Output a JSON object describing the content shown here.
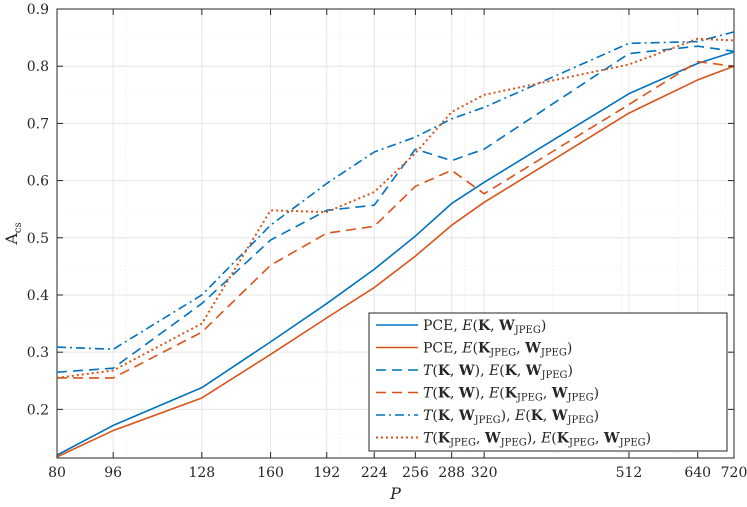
{
  "chart_data": {
    "type": "line",
    "title": "",
    "xlabel": "P",
    "ylabel": "A",
    "ylabel_subscript": "cs",
    "x_scale": "log",
    "xlim": [
      80,
      720
    ],
    "ylim": [
      0.115,
      0.9
    ],
    "x_ticks": [
      80,
      96,
      128,
      160,
      192,
      224,
      256,
      288,
      320,
      512,
      640,
      720
    ],
    "y_ticks": [
      0.2,
      0.3,
      0.4,
      0.5,
      0.6,
      0.7,
      0.8,
      0.9
    ],
    "y_tick_labels": [
      "0.2",
      "0.3",
      "0.4",
      "0.5",
      "0.6",
      "0.7",
      "0.8",
      "0.9"
    ],
    "grid": true,
    "legend_position": "bottom-right",
    "x": [
      80,
      96,
      128,
      160,
      192,
      224,
      256,
      288,
      320,
      512,
      640,
      720
    ],
    "series": [
      {
        "name": "PCE, E(K, W_JPEG)",
        "legend_text": "PCE, E(K, W JPEG)",
        "legend_parts": [
          [
            "PCE, ",
            "normal"
          ],
          [
            "E",
            "italic"
          ],
          [
            "(",
            "normal"
          ],
          [
            "K",
            "bold"
          ],
          [
            ", ",
            "normal"
          ],
          [
            "W",
            "bold"
          ],
          [
            "JPEG",
            "sub"
          ],
          [
            ")",
            "normal"
          ]
        ],
        "color": "#0072BD",
        "style": "solid",
        "values": [
          0.12,
          0.172,
          0.238,
          0.318,
          0.385,
          0.445,
          0.503,
          0.56,
          0.597,
          0.752,
          0.805,
          0.825
        ]
      },
      {
        "name": "PCE, E(K_JPEG, W_JPEG)",
        "legend_text": "PCE, E(K JPEG, W JPEG)",
        "legend_parts": [
          [
            "PCE, ",
            "normal"
          ],
          [
            "E",
            "italic"
          ],
          [
            "(",
            "normal"
          ],
          [
            "K",
            "bold"
          ],
          [
            "JPEG",
            "sub"
          ],
          [
            ", ",
            "normal"
          ],
          [
            "W",
            "bold"
          ],
          [
            "JPEG",
            "sub"
          ],
          [
            ")",
            "normal"
          ]
        ],
        "color": "#D95319",
        "style": "solid",
        "values": [
          0.117,
          0.163,
          0.22,
          0.296,
          0.36,
          0.413,
          0.468,
          0.522,
          0.562,
          0.718,
          0.776,
          0.8
        ]
      },
      {
        "name": "T(K, W), E(K, W_JPEG)",
        "legend_text": "T(K, W), E(K, W JPEG)",
        "legend_parts": [
          [
            "T",
            "italic"
          ],
          [
            "(",
            "normal"
          ],
          [
            "K",
            "bold"
          ],
          [
            ", ",
            "normal"
          ],
          [
            "W",
            "bold"
          ],
          [
            "), ",
            "normal"
          ],
          [
            "E",
            "italic"
          ],
          [
            "(",
            "normal"
          ],
          [
            "K",
            "bold"
          ],
          [
            ", ",
            "normal"
          ],
          [
            "W",
            "bold"
          ],
          [
            "JPEG",
            "sub"
          ],
          [
            ")",
            "normal"
          ]
        ],
        "color": "#0072BD",
        "style": "dashed",
        "values": [
          0.265,
          0.272,
          0.385,
          0.496,
          0.548,
          0.557,
          0.655,
          0.635,
          0.655,
          0.822,
          0.835,
          0.826
        ]
      },
      {
        "name": "T(K, W), E(K_JPEG, W_JPEG)",
        "legend_text": "T(K, W), E(K JPEG, W JPEG)",
        "legend_parts": [
          [
            "T",
            "italic"
          ],
          [
            "(",
            "normal"
          ],
          [
            "K",
            "bold"
          ],
          [
            ", ",
            "normal"
          ],
          [
            "W",
            "bold"
          ],
          [
            "), ",
            "normal"
          ],
          [
            "E",
            "italic"
          ],
          [
            "(",
            "normal"
          ],
          [
            "K",
            "bold"
          ],
          [
            "JPEG",
            "sub"
          ],
          [
            ", ",
            "normal"
          ],
          [
            "W",
            "bold"
          ],
          [
            "JPEG",
            "sub"
          ],
          [
            ")",
            "normal"
          ]
        ],
        "color": "#D95319",
        "style": "dashed",
        "values": [
          0.255,
          0.255,
          0.335,
          0.452,
          0.508,
          0.52,
          0.59,
          0.618,
          0.577,
          0.733,
          0.808,
          0.8
        ]
      },
      {
        "name": "T(K, W_JPEG), E(K, W_JPEG)",
        "legend_text": "T(K, W JPEG), E(K, W JPEG)",
        "legend_parts": [
          [
            "T",
            "italic"
          ],
          [
            "(",
            "normal"
          ],
          [
            "K",
            "bold"
          ],
          [
            ", ",
            "normal"
          ],
          [
            "W",
            "bold"
          ],
          [
            "JPEG",
            "sub"
          ],
          [
            "), ",
            "normal"
          ],
          [
            "E",
            "italic"
          ],
          [
            "(",
            "normal"
          ],
          [
            "K",
            "bold"
          ],
          [
            ", ",
            "normal"
          ],
          [
            "W",
            "bold"
          ],
          [
            "JPEG",
            "sub"
          ],
          [
            ")",
            "normal"
          ]
        ],
        "color": "#0072BD",
        "style": "dashdot",
        "values": [
          0.309,
          0.305,
          0.4,
          0.522,
          0.595,
          0.65,
          0.676,
          0.708,
          0.728,
          0.84,
          0.843,
          0.86
        ]
      },
      {
        "name": "T(K_JPEG, W_JPEG), E(K_JPEG, W_JPEG)",
        "legend_text": "T(K JPEG, W JPEG), E(K JPEG, W JPEG)",
        "legend_parts": [
          [
            "T",
            "italic"
          ],
          [
            "(",
            "normal"
          ],
          [
            "K",
            "bold"
          ],
          [
            "JPEG",
            "sub"
          ],
          [
            ", ",
            "normal"
          ],
          [
            "W",
            "bold"
          ],
          [
            "JPEG",
            "sub"
          ],
          [
            "), ",
            "normal"
          ],
          [
            "E",
            "italic"
          ],
          [
            "(",
            "normal"
          ],
          [
            "K",
            "bold"
          ],
          [
            "JPEG",
            "sub"
          ],
          [
            ", ",
            "normal"
          ],
          [
            "W",
            "bold"
          ],
          [
            "JPEG",
            "sub"
          ],
          [
            ")",
            "normal"
          ]
        ],
        "color": "#D95319",
        "style": "dotted",
        "values": [
          0.255,
          0.268,
          0.35,
          0.548,
          0.545,
          0.58,
          0.648,
          0.72,
          0.75,
          0.803,
          0.848,
          0.845
        ]
      }
    ]
  }
}
